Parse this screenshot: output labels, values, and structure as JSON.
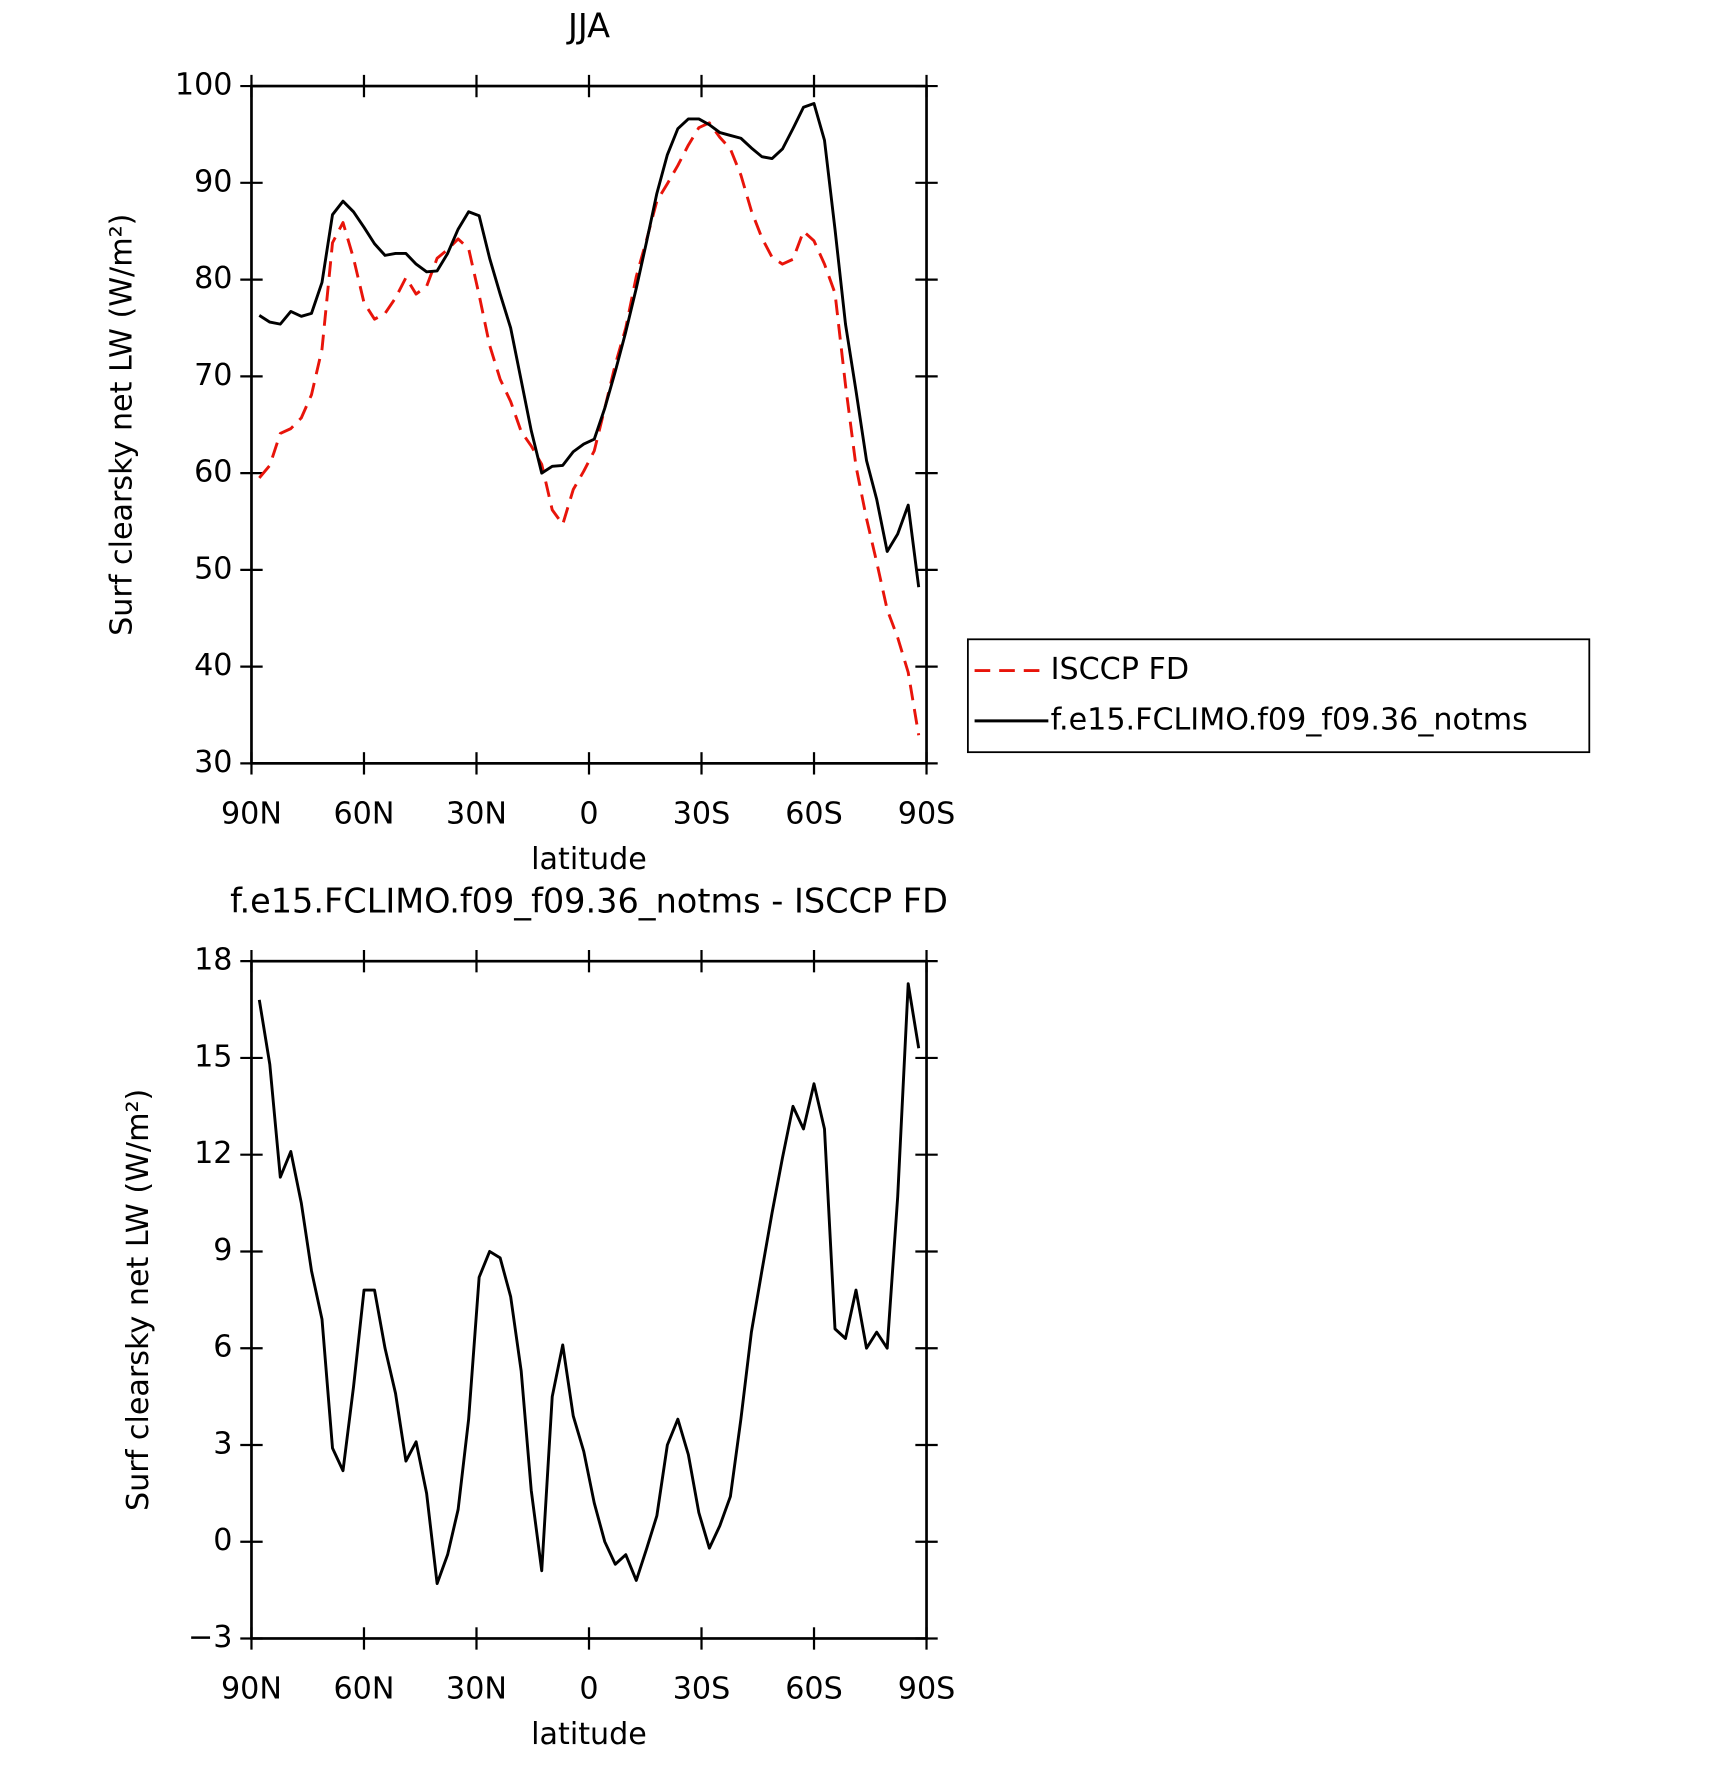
{
  "chart_data": [
    {
      "type": "line",
      "title": "JJA",
      "xlabel": "latitude",
      "ylabel": "Surf clearsky net LW (W/m²)",
      "x": [
        87.9,
        85.1,
        82.3,
        79.5,
        76.7,
        74.0,
        71.2,
        68.4,
        65.6,
        62.8,
        60.0,
        57.2,
        54.4,
        51.6,
        48.8,
        46.1,
        43.3,
        40.5,
        37.7,
        34.9,
        32.1,
        29.3,
        26.5,
        23.7,
        20.9,
        18.1,
        15.4,
        12.6,
        9.8,
        7.0,
        4.2,
        1.4,
        -1.4,
        -4.2,
        -7.0,
        -9.8,
        -12.6,
        -15.4,
        -18.1,
        -20.9,
        -23.7,
        -26.5,
        -29.3,
        -32.1,
        -34.9,
        -37.7,
        -40.5,
        -43.3,
        -46.1,
        -48.8,
        -51.6,
        -54.4,
        -57.2,
        -60.0,
        -62.8,
        -65.6,
        -68.4,
        -71.2,
        -74.0,
        -76.7,
        -79.5,
        -82.3,
        -85.1,
        -87.9
      ],
      "series": [
        {
          "name": "ISCCP FD",
          "color": "#e8140a",
          "dash": true,
          "values": [
            59.5,
            60.8,
            64.1,
            64.6,
            65.7,
            68.1,
            72.8,
            83.8,
            85.9,
            82.2,
            77.6,
            75.9,
            76.5,
            78.1,
            80.2,
            78.5,
            79.3,
            82.2,
            83.1,
            84.2,
            83.2,
            78.4,
            73.2,
            69.7,
            67.4,
            64.3,
            62.8,
            60.9,
            56.2,
            54.7,
            58.3,
            60.2,
            62.3,
            66.7,
            71.2,
            75.0,
            80.3,
            84.2,
            88.1,
            89.9,
            91.8,
            93.9,
            95.7,
            96.2,
            94.7,
            93.5,
            90.8,
            87.1,
            84.3,
            82.3,
            81.6,
            82.1,
            85.0,
            84.0,
            81.6,
            78.6,
            69.1,
            60.7,
            55.3,
            50.8,
            45.9,
            43.0,
            39.4,
            32.9
          ]
        },
        {
          "name": "f.e15.FCLIMO.f09_f09.36_notms",
          "color": "#000000",
          "dash": false,
          "values": [
            76.3,
            75.6,
            75.4,
            76.7,
            76.2,
            76.5,
            79.7,
            86.7,
            88.1,
            87.0,
            85.4,
            83.7,
            82.5,
            82.7,
            82.7,
            81.6,
            80.8,
            80.9,
            82.7,
            85.2,
            87.0,
            86.6,
            82.2,
            78.5,
            75.0,
            69.6,
            64.4,
            60.0,
            60.7,
            60.8,
            62.2,
            63.0,
            63.5,
            66.7,
            70.5,
            74.6,
            79.1,
            84.0,
            88.9,
            92.9,
            95.6,
            96.6,
            96.6,
            96.0,
            95.2,
            94.9,
            94.6,
            93.6,
            92.7,
            92.5,
            93.5,
            95.6,
            97.8,
            98.2,
            94.4,
            85.2,
            75.4,
            68.5,
            61.3,
            57.3,
            51.9,
            53.7,
            56.7,
            48.2
          ]
        }
      ],
      "xlim": [
        90,
        -90
      ],
      "xticks": [
        {
          "value": 90,
          "label": "90N"
        },
        {
          "value": 60,
          "label": "60N"
        },
        {
          "value": 30,
          "label": "30N"
        },
        0,
        {
          "value": -30,
          "label": "30S"
        },
        {
          "value": -60,
          "label": "60S"
        },
        {
          "value": -90,
          "label": "90S"
        }
      ],
      "ylim": [
        30,
        100
      ],
      "yticks": [
        30,
        40,
        50,
        60,
        70,
        80,
        90,
        100
      ],
      "legend": "right"
    },
    {
      "type": "line",
      "title": "f.e15.FCLIMO.f09_f09.36_notms - ISCCP FD",
      "xlabel": "latitude",
      "ylabel": "Surf clearsky net LW (W/m²)",
      "x": [
        87.9,
        85.1,
        82.3,
        79.5,
        76.7,
        74.0,
        71.2,
        68.4,
        65.6,
        62.8,
        60.0,
        57.2,
        54.4,
        51.6,
        48.8,
        46.1,
        43.3,
        40.5,
        37.7,
        34.9,
        32.1,
        29.3,
        26.5,
        23.7,
        20.9,
        18.1,
        15.4,
        12.6,
        9.8,
        7.0,
        4.2,
        1.4,
        -1.4,
        -4.2,
        -7.0,
        -9.8,
        -12.6,
        -15.4,
        -18.1,
        -20.9,
        -23.7,
        -26.5,
        -29.3,
        -32.1,
        -34.9,
        -37.7,
        -40.5,
        -43.3,
        -46.1,
        -48.8,
        -51.6,
        -54.4,
        -57.2,
        -60.0,
        -62.8,
        -65.6,
        -68.4,
        -71.2,
        -74.0,
        -76.7,
        -79.5,
        -82.3,
        -85.1,
        -87.9
      ],
      "color": "#000000",
      "values": [
        16.8,
        14.8,
        11.3,
        12.1,
        10.5,
        8.4,
        6.9,
        2.9,
        2.2,
        4.8,
        7.8,
        7.8,
        6.0,
        4.6,
        2.5,
        3.1,
        1.5,
        -1.3,
        -0.4,
        1.0,
        3.8,
        8.2,
        9.0,
        8.8,
        7.6,
        5.3,
        1.6,
        -0.9,
        4.5,
        6.1,
        3.9,
        2.8,
        1.2,
        0.0,
        -0.7,
        -0.4,
        -1.2,
        -0.2,
        0.8,
        3.0,
        3.8,
        2.7,
        0.9,
        -0.2,
        0.5,
        1.4,
        3.8,
        6.5,
        8.4,
        10.2,
        11.9,
        13.5,
        12.8,
        14.2,
        12.8,
        6.6,
        6.3,
        7.8,
        6.0,
        6.5,
        6.0,
        10.7,
        17.3,
        15.3
      ],
      "xlim": [
        90,
        -90
      ],
      "xticks": [
        {
          "value": 90,
          "label": "90N"
        },
        {
          "value": 60,
          "label": "60N"
        },
        {
          "value": 30,
          "label": "30N"
        },
        0,
        {
          "value": -30,
          "label": "30S"
        },
        {
          "value": -60,
          "label": "60S"
        },
        {
          "value": -90,
          "label": "90S"
        }
      ],
      "ylim": [
        -3,
        18
      ],
      "yticks": [
        {
          "value": -3,
          "label": "−3"
        },
        0,
        3,
        6,
        9,
        12,
        15,
        18
      ]
    }
  ]
}
